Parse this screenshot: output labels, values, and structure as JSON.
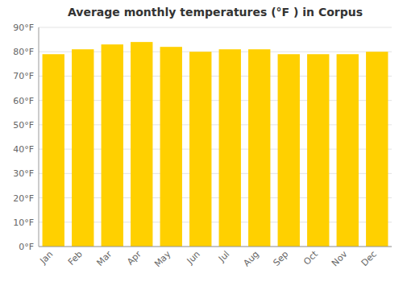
{
  "chart_data": {
    "type": "bar",
    "title": "Average monthly temperatures (°F ) in Corpus",
    "categories": [
      "Jan",
      "Feb",
      "Mar",
      "Apr",
      "May",
      "Jun",
      "Jul",
      "Aug",
      "Sep",
      "Oct",
      "Nov",
      "Dec"
    ],
    "values": [
      79,
      81,
      83,
      84,
      82,
      80,
      81,
      81,
      79,
      79,
      79,
      80
    ],
    "color": "#FFD000",
    "ylim": [
      0,
      90
    ],
    "yticks": [
      {
        "value": 0,
        "label": "0°F"
      },
      {
        "value": 10,
        "label": "10°F"
      },
      {
        "value": 20,
        "label": "20°F"
      },
      {
        "value": 30,
        "label": "30°F"
      },
      {
        "value": 40,
        "label": "40°F"
      },
      {
        "value": 50,
        "label": "50°F"
      },
      {
        "value": 60,
        "label": "60°F"
      },
      {
        "value": 70,
        "label": "70°F"
      },
      {
        "value": 80,
        "label": "80°F"
      },
      {
        "value": 90,
        "label": "90°F"
      }
    ],
    "grid": true
  }
}
